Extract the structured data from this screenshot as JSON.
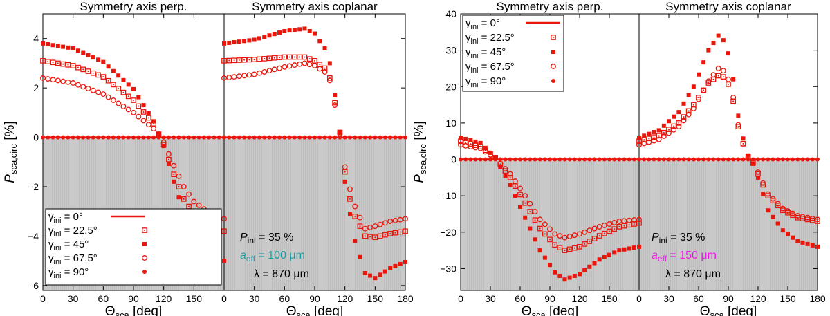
{
  "colors": {
    "series": "#e8160b",
    "shade": "#c4c4c4",
    "aeff_left": "#1a9ea3",
    "aeff_right": "#e81ae6"
  },
  "symbols": {
    "0": "line",
    "22.5": "open-square-dot",
    "45": "filled-square",
    "67.5": "open-circle",
    "90": "filled-circle"
  },
  "chart_data": [
    {
      "type": "scatter",
      "panel": "left",
      "titles": [
        "Symmetry axis perp.",
        "Symmetry axis coplanar"
      ],
      "ylabel": "P_sca,circ [%]",
      "xlabel": "Θ_sca [deg]",
      "ylim": [
        -6.2,
        5.0
      ],
      "yticks": [
        -6,
        -4,
        -2,
        0,
        2,
        4
      ],
      "xlim": [
        0,
        180
      ],
      "xticks_sub1": [
        0,
        30,
        60,
        90,
        120,
        150
      ],
      "xticks_sub2": [
        0,
        30,
        60,
        90,
        120,
        150,
        180
      ],
      "negative_region_shaded": true,
      "legend": {
        "placement": "bottom-left of first subpanel",
        "prefix": "γ",
        "sub": "ini",
        "entries": [
          "=    0°",
          "= 22.5°",
          "= 45°",
          "= 67.5°",
          "= 90°"
        ]
      },
      "annotations": {
        "p_main": "P",
        "p_sub": "ini",
        "p_rest": " = 35 %",
        "a_main": "a",
        "a_sub": "eff",
        "a_rest": " = 100 μm",
        "lambda": "λ = 870 μm"
      },
      "series": [
        {
          "name": "0",
          "sub": 1,
          "values": [
            [
              0,
              0
            ],
            [
              180,
              0
            ]
          ]
        },
        {
          "name": "0",
          "sub": 2,
          "values": [
            [
              0,
              0
            ],
            [
              180,
              0
            ]
          ]
        },
        {
          "name": "22.5",
          "sub": 1,
          "values": [
            [
              0,
              3.1
            ],
            [
              30,
              2.9
            ],
            [
              60,
              2.45
            ],
            [
              90,
              1.5
            ],
            [
              110,
              0.55
            ],
            [
              120,
              -0.3
            ],
            [
              130,
              -1.5
            ],
            [
              140,
              -2.5
            ],
            [
              150,
              -3.1
            ],
            [
              165,
              -3.55
            ],
            [
              180,
              -3.8
            ]
          ]
        },
        {
          "name": "45",
          "sub": 1,
          "values": [
            [
              0,
              3.8
            ],
            [
              30,
              3.6
            ],
            [
              60,
              3.05
            ],
            [
              90,
              1.95
            ],
            [
              110,
              0.65
            ],
            [
              120,
              -0.35
            ],
            [
              130,
              -1.8
            ],
            [
              140,
              -3.05
            ],
            [
              150,
              -4.0
            ],
            [
              165,
              -4.65
            ],
            [
              180,
              -5.0
            ]
          ]
        },
        {
          "name": "67.5",
          "sub": 1,
          "values": [
            [
              0,
              2.4
            ],
            [
              30,
              2.2
            ],
            [
              60,
              1.75
            ],
            [
              90,
              1.0
            ],
            [
              110,
              0.35
            ],
            [
              120,
              -0.2
            ],
            [
              130,
              -1.15
            ],
            [
              140,
              -2.0
            ],
            [
              150,
              -2.6
            ],
            [
              165,
              -3.05
            ],
            [
              180,
              -3.3
            ]
          ]
        },
        {
          "name": "90",
          "sub": 1,
          "values": [
            [
              0,
              0
            ],
            [
              180,
              0
            ]
          ]
        },
        {
          "name": "22.5",
          "sub": 2,
          "values": [
            [
              0,
              3.1
            ],
            [
              30,
              3.15
            ],
            [
              60,
              3.25
            ],
            [
              80,
              3.25
            ],
            [
              90,
              3.1
            ],
            [
              100,
              2.8
            ],
            [
              105,
              2.4
            ],
            [
              110,
              1.4
            ],
            [
              115,
              0.2
            ],
            [
              120,
              -1.4
            ],
            [
              125,
              -2.5
            ],
            [
              130,
              -3.2
            ],
            [
              140,
              -4.0
            ],
            [
              150,
              -4.05
            ],
            [
              165,
              -3.9
            ],
            [
              180,
              -3.8
            ]
          ]
        },
        {
          "name": "45",
          "sub": 2,
          "values": [
            [
              0,
              3.8
            ],
            [
              30,
              3.95
            ],
            [
              60,
              4.3
            ],
            [
              80,
              4.4
            ],
            [
              90,
              4.2
            ],
            [
              100,
              3.6
            ],
            [
              105,
              3.0
            ],
            [
              110,
              1.7
            ],
            [
              115,
              0.2
            ],
            [
              120,
              -1.8
            ],
            [
              125,
              -3.1
            ],
            [
              130,
              -4.2
            ],
            [
              140,
              -5.5
            ],
            [
              150,
              -5.7
            ],
            [
              165,
              -5.3
            ],
            [
              180,
              -5.05
            ]
          ]
        },
        {
          "name": "67.5",
          "sub": 2,
          "values": [
            [
              0,
              2.4
            ],
            [
              30,
              2.55
            ],
            [
              60,
              2.85
            ],
            [
              80,
              3.0
            ],
            [
              90,
              2.9
            ],
            [
              100,
              2.65
            ],
            [
              105,
              2.3
            ],
            [
              110,
              1.3
            ],
            [
              115,
              0.15
            ],
            [
              120,
              -1.2
            ],
            [
              125,
              -2.1
            ],
            [
              130,
              -2.8
            ],
            [
              140,
              -3.7
            ],
            [
              150,
              -3.6
            ],
            [
              165,
              -3.4
            ],
            [
              180,
              -3.3
            ]
          ]
        },
        {
          "name": "90",
          "sub": 2,
          "values": [
            [
              0,
              0
            ],
            [
              180,
              0
            ]
          ]
        }
      ]
    },
    {
      "type": "scatter",
      "panel": "right",
      "titles": [
        "Symmetry axis perp.",
        "Symmetry axis coplanar"
      ],
      "ylabel": "P_sca,circ [%]",
      "xlabel": "Θ_sca [deg]",
      "ylim": [
        -36,
        40
      ],
      "yticks": [
        -30,
        -20,
        -10,
        0,
        10,
        20,
        30,
        40
      ],
      "xlim": [
        0,
        180
      ],
      "xticks_sub1": [
        0,
        30,
        60,
        90,
        120,
        150
      ],
      "xticks_sub2": [
        0,
        30,
        60,
        90,
        120,
        150,
        180
      ],
      "negative_region_shaded": true,
      "legend": {
        "placement": "top-left of first subpanel",
        "prefix": "γ",
        "sub": "ini",
        "entries": [
          "=    0°",
          "= 22.5°",
          "= 45°",
          "= 67.5°",
          "= 90°"
        ]
      },
      "annotations": {
        "p_main": "P",
        "p_sub": "ini",
        "p_rest": " = 35 %",
        "a_main": "a",
        "a_sub": "eff",
        "a_rest": " = 150 μm",
        "lambda": "λ = 870 μm"
      },
      "series": [
        {
          "name": "0",
          "sub": 1,
          "values": [
            [
              0,
              0
            ],
            [
              180,
              0
            ]
          ]
        },
        {
          "name": "22.5",
          "sub": 1,
          "values": [
            [
              0,
              5
            ],
            [
              20,
              3.5
            ],
            [
              35,
              0.5
            ],
            [
              50,
              -5
            ],
            [
              65,
              -12
            ],
            [
              80,
              -19
            ],
            [
              95,
              -23.5
            ],
            [
              105,
              -25
            ],
            [
              120,
              -24
            ],
            [
              140,
              -21
            ],
            [
              160,
              -18.5
            ],
            [
              180,
              -17.5
            ]
          ]
        },
        {
          "name": "45",
          "sub": 1,
          "values": [
            [
              0,
              6
            ],
            [
              20,
              4.5
            ],
            [
              35,
              0.5
            ],
            [
              50,
              -7
            ],
            [
              65,
              -16
            ],
            [
              80,
              -25
            ],
            [
              95,
              -31
            ],
            [
              105,
              -33
            ],
            [
              120,
              -31.5
            ],
            [
              140,
              -27.5
            ],
            [
              160,
              -25
            ],
            [
              180,
              -24
            ]
          ]
        },
        {
          "name": "67.5",
          "sub": 1,
          "values": [
            [
              0,
              4
            ],
            [
              20,
              3
            ],
            [
              35,
              0.3
            ],
            [
              50,
              -4
            ],
            [
              65,
              -10
            ],
            [
              80,
              -16.5
            ],
            [
              95,
              -20.5
            ],
            [
              105,
              -21.5
            ],
            [
              120,
              -20.5
            ],
            [
              140,
              -18.5
            ],
            [
              160,
              -17
            ],
            [
              180,
              -16.5
            ]
          ]
        },
        {
          "name": "90",
          "sub": 1,
          "values": [
            [
              0,
              0
            ],
            [
              180,
              0
            ]
          ]
        },
        {
          "name": "0",
          "sub": 2,
          "values": [
            [
              0,
              0
            ],
            [
              180,
              0
            ]
          ]
        },
        {
          "name": "22.5",
          "sub": 2,
          "values": [
            [
              0,
              5
            ],
            [
              20,
              6.5
            ],
            [
              40,
              10
            ],
            [
              55,
              15
            ],
            [
              70,
              21
            ],
            [
              80,
              23
            ],
            [
              88,
              22.5
            ],
            [
              95,
              16
            ],
            [
              100,
              9
            ],
            [
              108,
              1.5
            ],
            [
              115,
              -1
            ],
            [
              120,
              -4
            ],
            [
              130,
              -10
            ],
            [
              145,
              -14
            ],
            [
              160,
              -16
            ],
            [
              180,
              -17
            ]
          ]
        },
        {
          "name": "45",
          "sub": 2,
          "values": [
            [
              0,
              6
            ],
            [
              20,
              8
            ],
            [
              40,
              13
            ],
            [
              55,
              20
            ],
            [
              70,
              30
            ],
            [
              80,
              34
            ],
            [
              88,
              32
            ],
            [
              95,
              22
            ],
            [
              100,
              12
            ],
            [
              108,
              2
            ],
            [
              115,
              -1.2
            ],
            [
              120,
              -5
            ],
            [
              130,
              -14
            ],
            [
              145,
              -19.5
            ],
            [
              160,
              -22.5
            ],
            [
              180,
              -24
            ]
          ]
        },
        {
          "name": "67.5",
          "sub": 2,
          "values": [
            [
              0,
              4
            ],
            [
              20,
              5.5
            ],
            [
              40,
              9
            ],
            [
              55,
              14
            ],
            [
              70,
              21.5
            ],
            [
              80,
              25
            ],
            [
              88,
              24
            ],
            [
              95,
              17
            ],
            [
              100,
              9.5
            ],
            [
              108,
              1.2
            ],
            [
              115,
              -0.8
            ],
            [
              120,
              -3.5
            ],
            [
              130,
              -9.5
            ],
            [
              145,
              -13.5
            ],
            [
              160,
              -15.5
            ],
            [
              180,
              -16.5
            ]
          ]
        },
        {
          "name": "90",
          "sub": 2,
          "values": [
            [
              0,
              0
            ],
            [
              180,
              0
            ]
          ]
        }
      ]
    }
  ]
}
